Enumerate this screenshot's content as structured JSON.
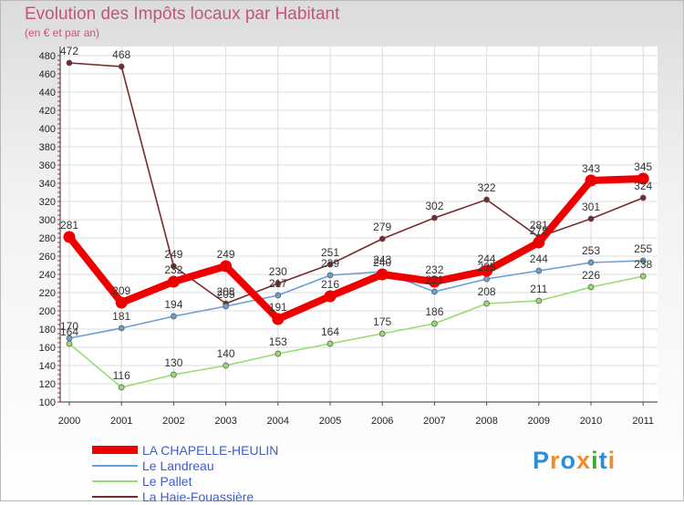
{
  "title": "Evolution des Impôts locaux par Habitant",
  "subtitle": "(en € et par an)",
  "logo": {
    "text": "Proxiti",
    "colors": [
      "#2a8fd6",
      "#f28c28",
      "#2a8fd6",
      "#f28c28",
      "#3aaa35",
      "#2a8fd6",
      "#f28c28"
    ]
  },
  "chart_data": {
    "type": "line",
    "x": [
      "2000",
      "2001",
      "2002",
      "2003",
      "2004",
      "2005",
      "2006",
      "2007",
      "2008",
      "2009",
      "2010",
      "2011"
    ],
    "ylim": [
      100,
      480
    ],
    "yticks": [
      100,
      120,
      140,
      160,
      180,
      200,
      220,
      240,
      260,
      280,
      300,
      320,
      340,
      360,
      380,
      400,
      420,
      440,
      460,
      480
    ],
    "grid": true,
    "legend_position": "bottom-left",
    "series": [
      {
        "name": "La Haie-Fouassière",
        "color": "#7a2a2e",
        "values": [
          472,
          468,
          249,
          208,
          230,
          251,
          279,
          302,
          322,
          281,
          301,
          324
        ]
      },
      {
        "name": "Le Pallet",
        "color": "#97dd6e",
        "values": [
          164,
          116,
          130,
          140,
          153,
          164,
          175,
          186,
          208,
          211,
          226,
          238
        ]
      },
      {
        "name": "Le Landreau",
        "color": "#6b9fd1",
        "values": [
          170,
          181,
          194,
          205,
          217,
          239,
          243,
          221,
          235,
          244,
          253,
          255
        ]
      },
      {
        "name": "LA CHAPELLE-HEULIN",
        "color": "#ee0000",
        "values": [
          281,
          209,
          232,
          249,
          191,
          216,
          240,
          232,
          244,
          275,
          343,
          345
        ]
      }
    ],
    "data_labels": [
      {
        "series": 0,
        "values": [
          "472",
          "468",
          "249",
          "208",
          "230",
          "251",
          "279",
          "302",
          "322",
          "281",
          "301",
          "324"
        ]
      },
      {
        "series": 1,
        "values": [
          "164",
          "116",
          "130",
          "140",
          "153",
          "164",
          "175",
          "186",
          "208",
          "211",
          "226",
          "238"
        ]
      },
      {
        "series": 2,
        "values": [
          "170",
          "181",
          "194",
          "205",
          "217",
          "239",
          "243",
          "221",
          "235",
          "244",
          "253",
          "255"
        ]
      },
      {
        "series": 3,
        "values": [
          "281",
          "209",
          "232",
          "249",
          "191",
          "216",
          "240",
          "232",
          "244",
          "275",
          "343",
          "345"
        ]
      }
    ]
  },
  "legend": [
    {
      "label": "LA CHAPELLE-HEULIN",
      "color": "#ee0000"
    },
    {
      "label": "Le Landreau",
      "color": "#6b9fd1"
    },
    {
      "label": "Le Pallet",
      "color": "#97dd6e"
    },
    {
      "label": "La Haie-Fouassière",
      "color": "#7a2a2e"
    }
  ]
}
